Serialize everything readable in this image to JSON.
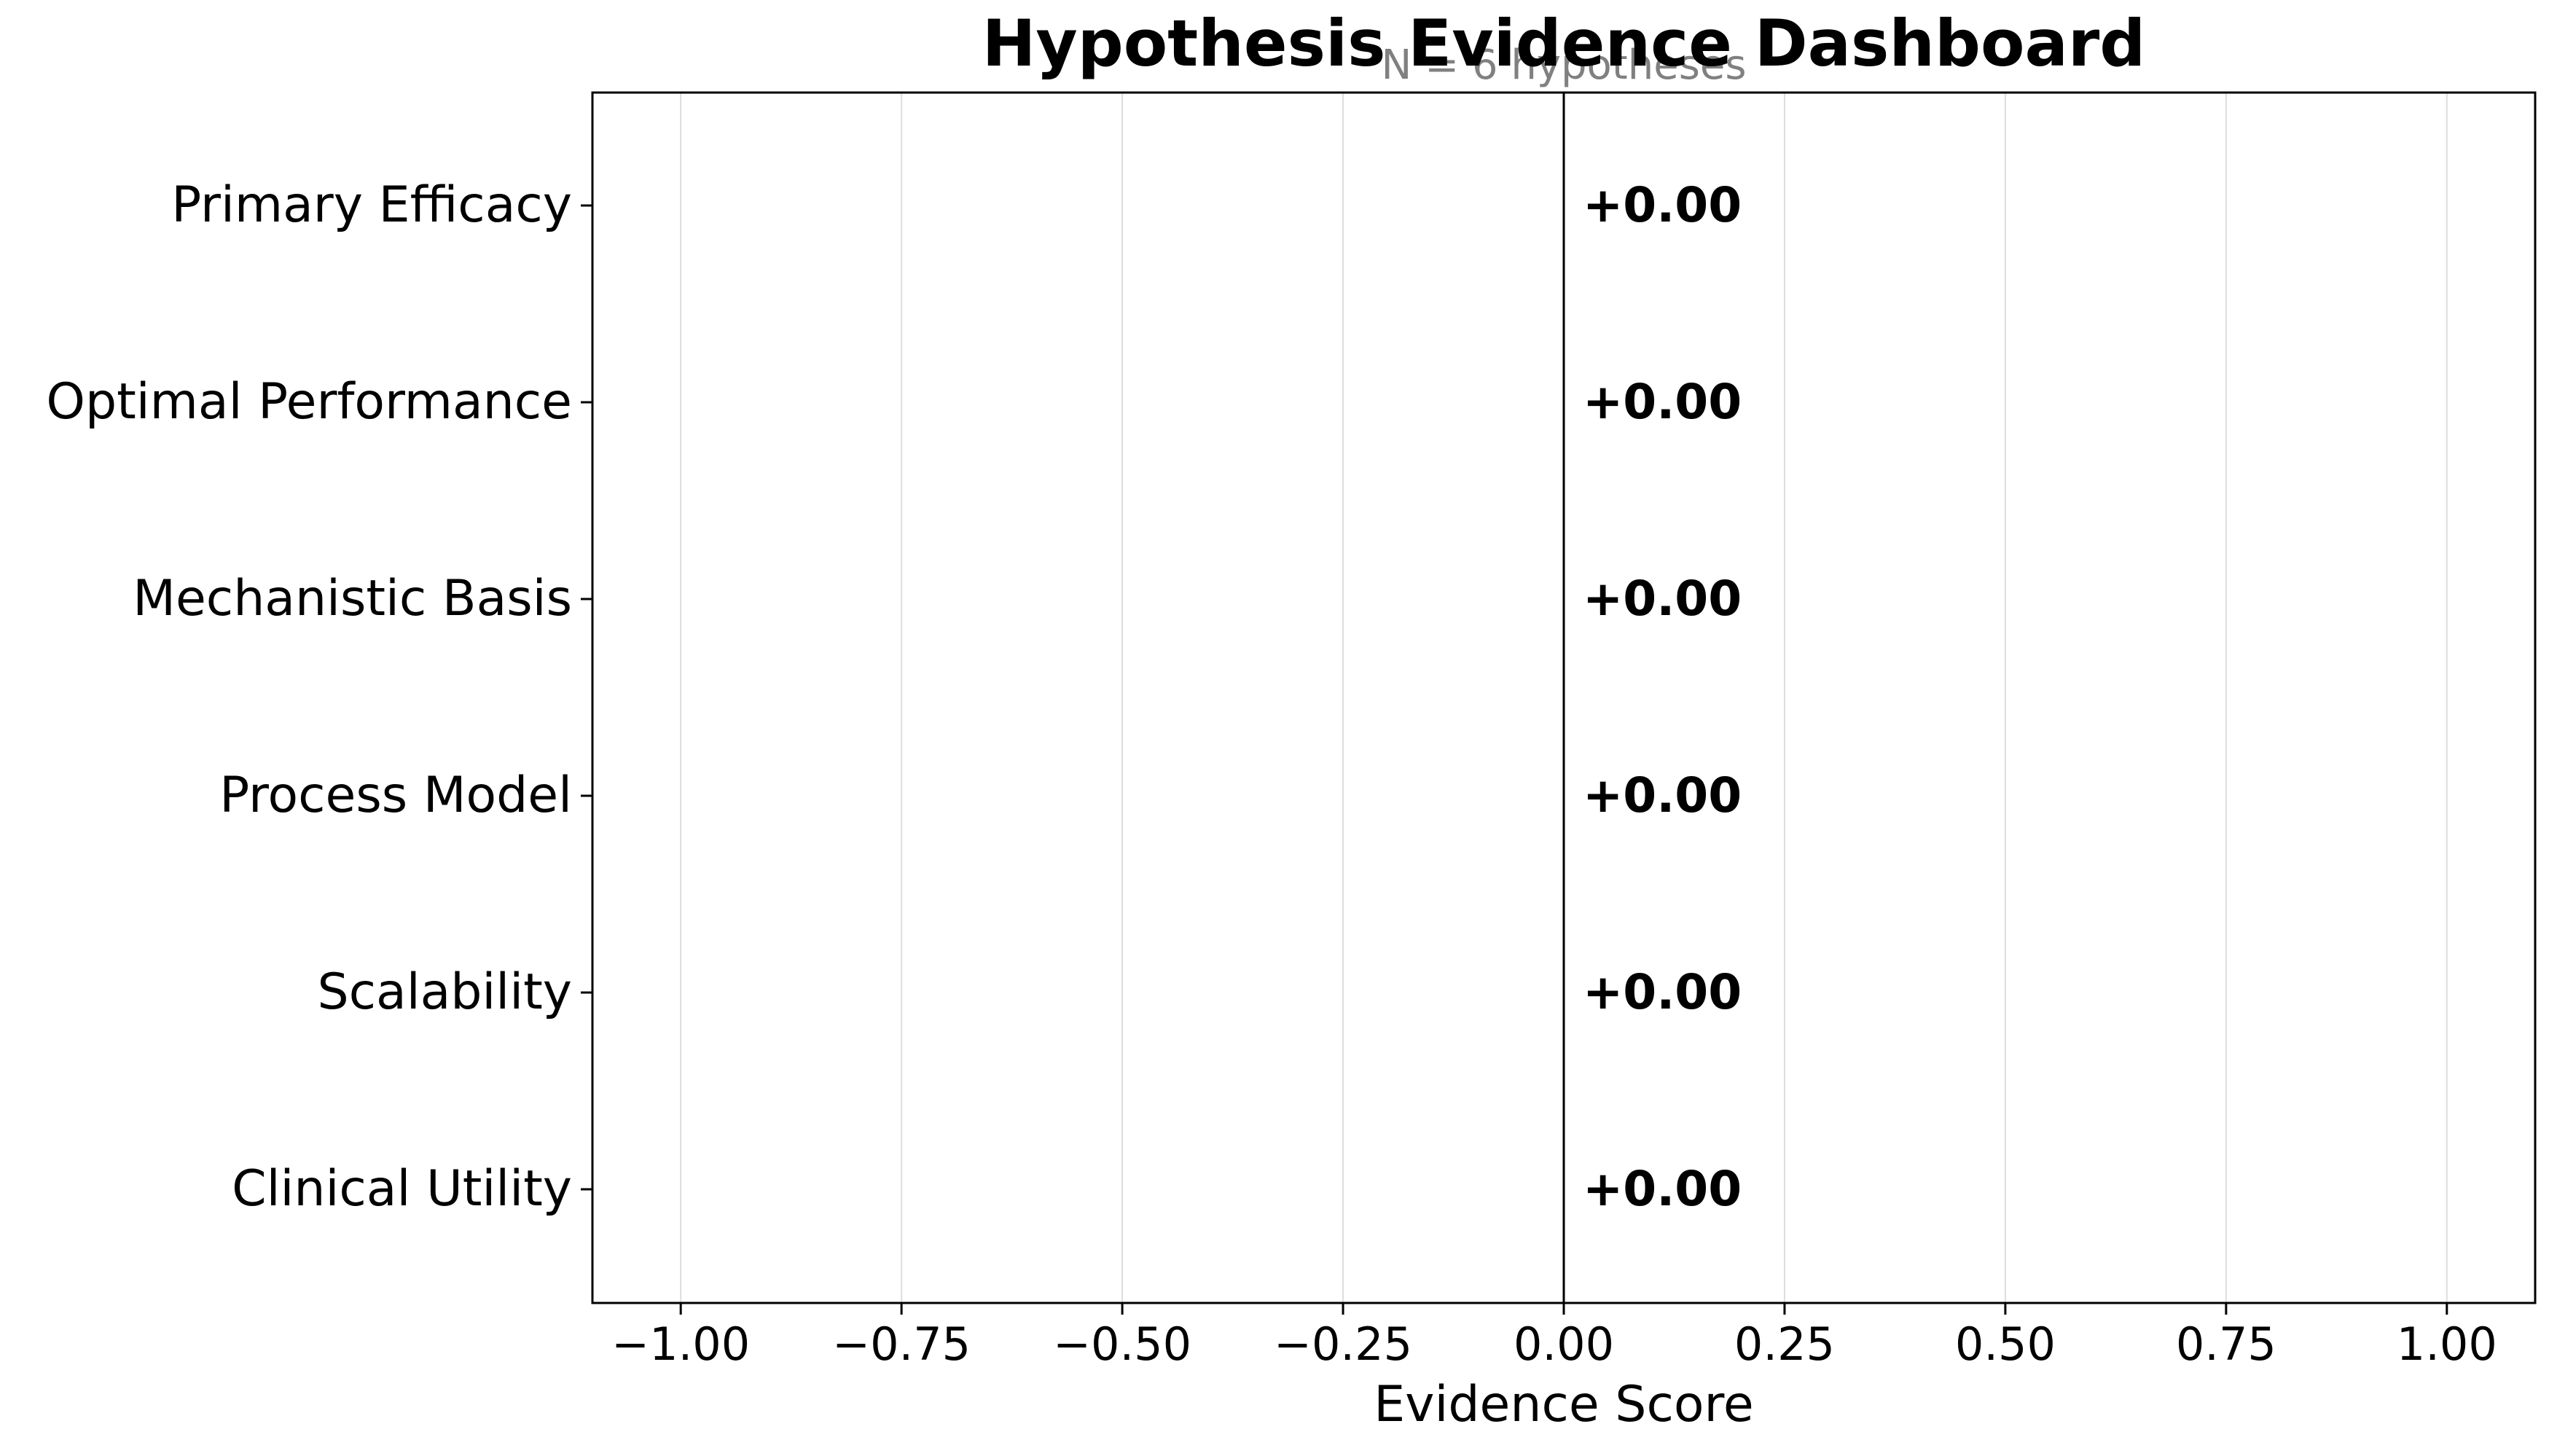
{
  "chart_data": {
    "type": "bar",
    "orientation": "horizontal",
    "title": "Hypothesis Evidence Dashboard",
    "subtitle": "N = 6 hypotheses",
    "xlabel": "Evidence Score",
    "ylabel": "",
    "xlim": [
      -1.1,
      1.1
    ],
    "x_ticks": [
      -1.0,
      -0.75,
      -0.5,
      -0.25,
      0.0,
      0.25,
      0.5,
      0.75,
      1.0
    ],
    "x_tick_labels": [
      "−1.00",
      "−0.75",
      "−0.50",
      "−0.25",
      "0.00",
      "0.25",
      "0.50",
      "0.75",
      "1.00"
    ],
    "categories": [
      "Primary Efficacy",
      "Optimal Performance",
      "Mechanistic Basis",
      "Process Model",
      "Scalability",
      "Clinical Utility"
    ],
    "values": [
      0.0,
      0.0,
      0.0,
      0.0,
      0.0,
      0.0
    ],
    "data_labels": [
      "+0.00",
      "+0.00",
      "+0.00",
      "+0.00",
      "+0.00",
      "+0.00"
    ],
    "grid": "vertical",
    "colors": {
      "text": "#000000",
      "subtitle": "#808080",
      "grid": "#dddddd",
      "axis": "#000000",
      "zero_line": "#000000"
    }
  }
}
